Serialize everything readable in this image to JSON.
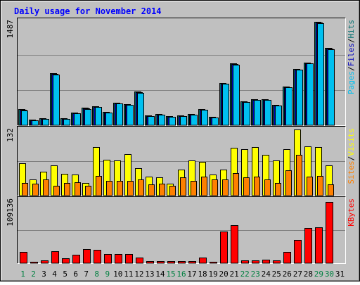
{
  "title": "Daily usage for November 2014",
  "colors": {
    "page_bg": "#c0c0c0",
    "panel_bg": "#c0c0c0",
    "title": "#0000ff",
    "weekday_label": "#000000",
    "weekend_label": "#008040",
    "hits": "#007070",
    "files": "#0000c0",
    "pages": "#00c0f0",
    "visits": "#ffff00",
    "sites": "#ff8000",
    "kbytes": "#ff0000"
  },
  "chart_data": [
    {
      "type": "bar",
      "panel": "top",
      "ymax_label": "1487",
      "ymax": 1487,
      "legend": [
        {
          "key": "pages",
          "text": "Pages"
        },
        {
          "key": "sep1",
          "text": "/"
        },
        {
          "key": "files",
          "text": "Files"
        },
        {
          "key": "sep2",
          "text": "/"
        },
        {
          "key": "hits",
          "text": "Hits"
        }
      ],
      "x": [
        "1",
        "2",
        "3",
        "4",
        "5",
        "6",
        "7",
        "8",
        "9",
        "10",
        "11",
        "12",
        "13",
        "14",
        "15",
        "16",
        "17",
        "18",
        "19",
        "20",
        "21",
        "22",
        "23",
        "24",
        "25",
        "26",
        "27",
        "28",
        "29",
        "30",
        "31"
      ],
      "weekend_days": [
        "1",
        "2",
        "8",
        "9",
        "15",
        "16",
        "22",
        "23",
        "29",
        "30"
      ],
      "series": [
        {
          "name": "Hits",
          "key": "hits",
          "values": [
            230,
            80,
            100,
            740,
            100,
            180,
            250,
            270,
            190,
            320,
            300,
            480,
            140,
            160,
            130,
            140,
            160,
            230,
            120,
            600,
            880,
            340,
            370,
            370,
            290,
            550,
            800,
            890,
            1480,
            1110,
            0
          ]
        },
        {
          "name": "Files",
          "key": "files",
          "values": [
            220,
            75,
            95,
            730,
            95,
            175,
            240,
            265,
            185,
            315,
            295,
            470,
            135,
            155,
            125,
            135,
            155,
            225,
            115,
            595,
            870,
            335,
            365,
            365,
            285,
            545,
            795,
            885,
            1470,
            1100,
            0
          ]
        },
        {
          "name": "Pages",
          "key": "pages",
          "values": [
            210,
            70,
            90,
            720,
            90,
            170,
            235,
            260,
            180,
            310,
            290,
            460,
            130,
            150,
            120,
            130,
            150,
            220,
            110,
            590,
            860,
            330,
            360,
            360,
            280,
            540,
            790,
            880,
            1460,
            1090,
            0
          ]
        }
      ]
    },
    {
      "type": "bar",
      "panel": "middle",
      "ymax_label": "132",
      "ymax": 132,
      "legend": [
        {
          "key": "sites",
          "text": "Sites"
        },
        {
          "key": "sep1",
          "text": "/"
        },
        {
          "key": "visits",
          "text": "Visits"
        }
      ],
      "x": [
        "1",
        "2",
        "3",
        "4",
        "5",
        "6",
        "7",
        "8",
        "9",
        "10",
        "11",
        "12",
        "13",
        "14",
        "15",
        "16",
        "17",
        "18",
        "19",
        "20",
        "21",
        "22",
        "23",
        "24",
        "25",
        "26",
        "27",
        "28",
        "29",
        "30",
        "31"
      ],
      "series": [
        {
          "name": "Visits",
          "key": "visits",
          "values": [
            65,
            32,
            48,
            60,
            44,
            42,
            25,
            97,
            72,
            70,
            83,
            55,
            38,
            37,
            24,
            52,
            70,
            68,
            42,
            52,
            95,
            92,
            97,
            82,
            70,
            92,
            132,
            98,
            97,
            60,
            0
          ]
        },
        {
          "name": "Sites",
          "key": "sites",
          "values": [
            25,
            24,
            32,
            20,
            25,
            26,
            20,
            40,
            30,
            30,
            30,
            32,
            22,
            24,
            20,
            36,
            30,
            38,
            32,
            32,
            45,
            36,
            38,
            32,
            25,
            50,
            82,
            38,
            39,
            22,
            0
          ]
        }
      ]
    },
    {
      "type": "bar",
      "panel": "bottom",
      "ymax_label": "109136",
      "ymax": 109136,
      "legend": [
        {
          "key": "kbytes",
          "text": "KBytes"
        }
      ],
      "x": [
        "1",
        "2",
        "3",
        "4",
        "5",
        "6",
        "7",
        "8",
        "9",
        "10",
        "11",
        "12",
        "13",
        "14",
        "15",
        "16",
        "17",
        "18",
        "19",
        "20",
        "21",
        "22",
        "23",
        "24",
        "25",
        "26",
        "27",
        "28",
        "29",
        "30",
        "31"
      ],
      "series": [
        {
          "name": "KBytes",
          "key": "kbytes",
          "values": [
            19000,
            2500,
            4500,
            20500,
            8000,
            15000,
            24000,
            23000,
            15500,
            15500,
            15500,
            10000,
            4000,
            4000,
            3500,
            4000,
            3500,
            9500,
            2000,
            55000,
            66000,
            4500,
            4500,
            6500,
            4500,
            20000,
            40000,
            61000,
            62000,
            105000,
            0
          ]
        }
      ]
    }
  ]
}
